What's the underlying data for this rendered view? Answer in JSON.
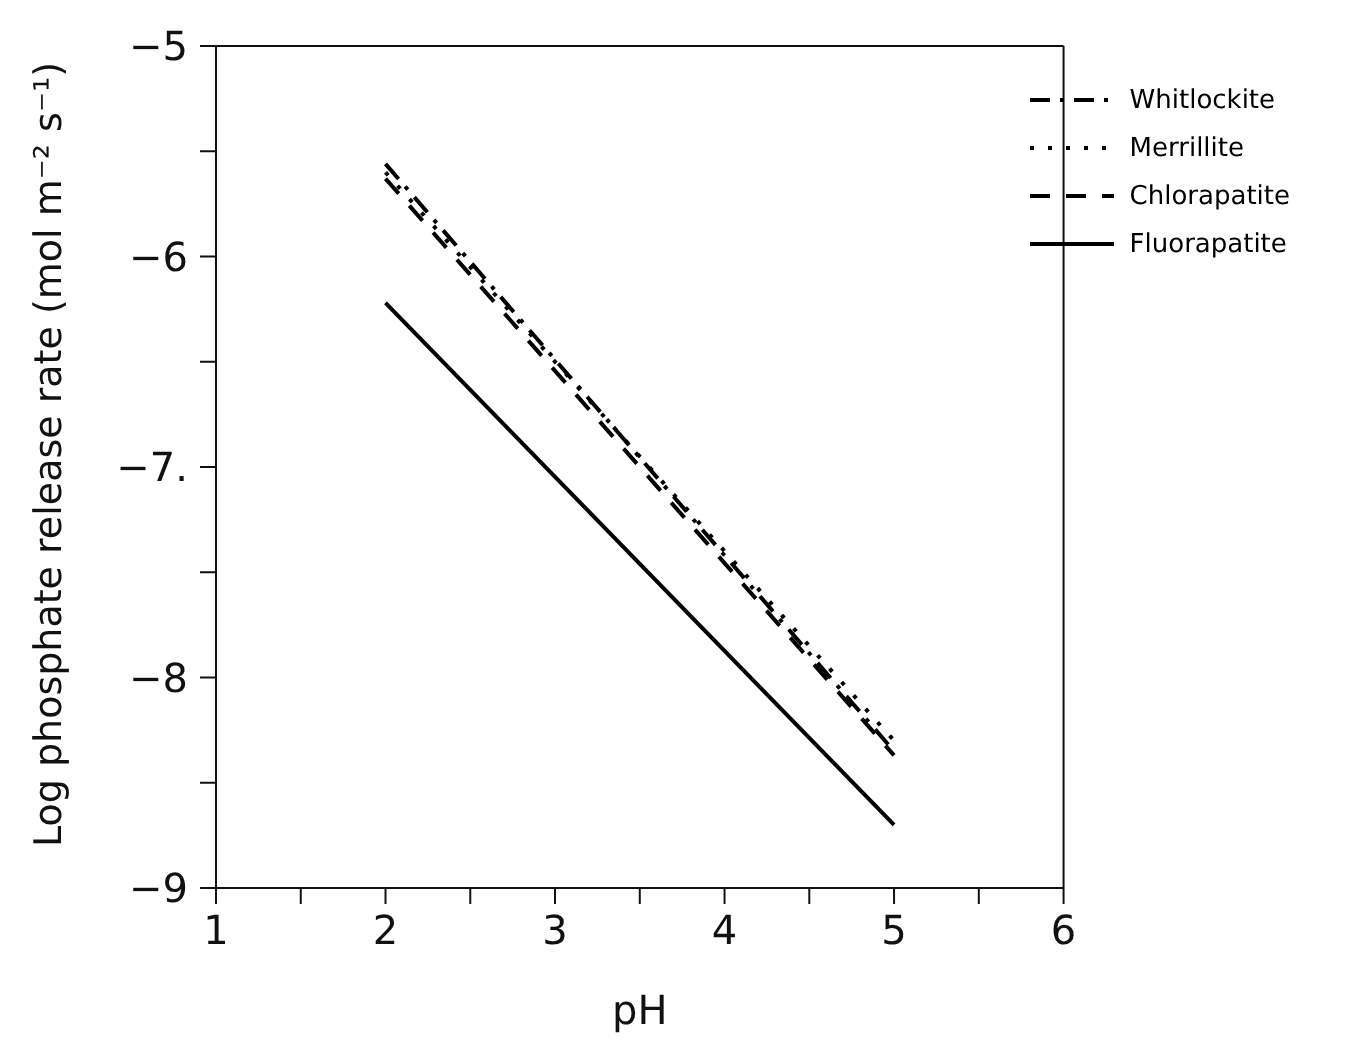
{
  "chart_data": {
    "type": "line",
    "xlabel": "pH",
    "ylabel": "Log phosphate release rate (mol m⁻² s⁻¹)",
    "xlim": [
      1,
      6
    ],
    "xticks": [
      1,
      {
        "value": 1.5,
        "label": null
      },
      2,
      {
        "value": 2.5,
        "label": null
      },
      3,
      {
        "value": 3.5,
        "label": null
      },
      4,
      {
        "value": 4.5,
        "label": null
      },
      5,
      {
        "value": 5.5,
        "label": null
      },
      6
    ],
    "ylim": [
      -9,
      -5
    ],
    "yticks": [
      {
        "value": -9,
        "label": "−9"
      },
      {
        "value": -8.5,
        "label": null
      },
      {
        "value": -8,
        "label": "−8"
      },
      {
        "value": -7.5,
        "label": null
      },
      {
        "value": -7,
        "label": "−7."
      },
      {
        "value": -6.5,
        "label": null
      },
      {
        "value": -6,
        "label": "−6"
      },
      {
        "value": -5.5,
        "label": null
      },
      {
        "value": -5,
        "label": "−5"
      }
    ],
    "legend": "top right",
    "x": [
      2,
      5
    ],
    "series": [
      {
        "name": "Whitlockite",
        "color": "#000000",
        "line_style": "dashdot",
        "values": [
          -5.56,
          -8.35
        ]
      },
      {
        "name": "Merrillite",
        "color": "#000000",
        "line_style": "dotted",
        "values": [
          -5.6,
          -8.3
        ]
      },
      {
        "name": "Chlorapatite",
        "color": "#000000",
        "line_style": "dashed",
        "values": [
          -5.63,
          -8.37
        ]
      },
      {
        "name": "Fluorapatite",
        "color": "#000000",
        "line_style": "solid",
        "values": [
          -6.22,
          -8.7
        ]
      }
    ]
  }
}
